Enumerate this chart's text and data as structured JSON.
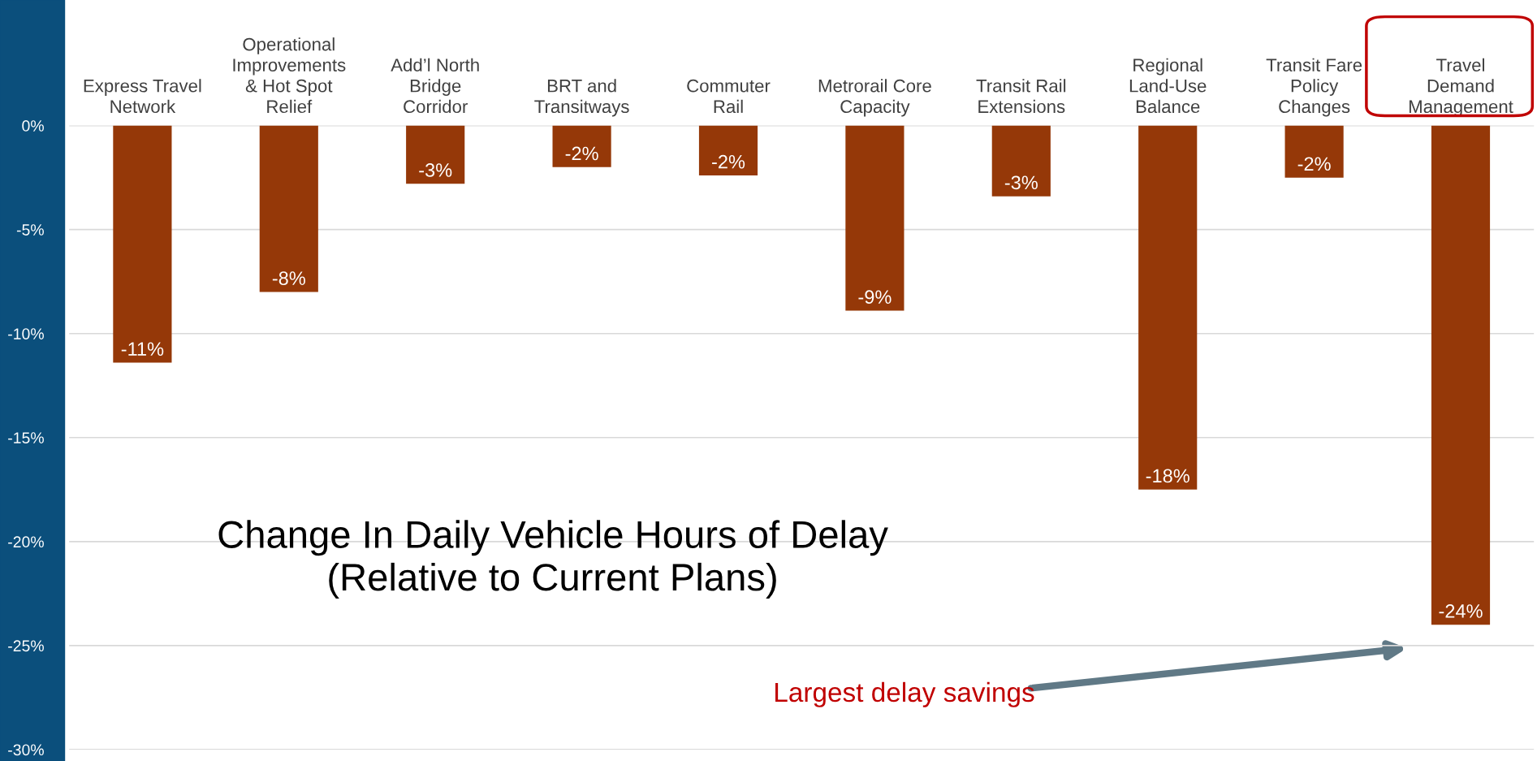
{
  "chart_data": {
    "type": "bar",
    "title": "Change In Daily Vehicle Hours of Delay\n(Relative to Current Plans)",
    "categories": [
      "Express Travel\nNetwork",
      "Operational\nImprovements\n& Hot Spot\nRelief",
      "Add’l North\nBridge\nCorridor",
      "BRT and\nTransitways",
      "Commuter\nRail",
      "Metrorail Core\nCapacity",
      "Transit Rail\nExtensions",
      "Regional\nLand-Use\nBalance",
      "Transit Fare\nPolicy\nChanges",
      "Travel\nDemand\nManagement"
    ],
    "values": [
      -11.4,
      -8.0,
      -2.8,
      -2.0,
      -2.4,
      -8.9,
      -3.4,
      -17.5,
      -2.5,
      -24.0
    ],
    "value_labels": [
      "-11%",
      "-8%",
      "-3%",
      "-2%",
      "-2%",
      "-9%",
      "-3%",
      "-18%",
      "-2%",
      "-24%"
    ],
    "color": "#953808",
    "ylim": [
      -30,
      0
    ],
    "yticks": [
      {
        "value": 0,
        "label": "0%"
      },
      {
        "value": -5,
        "label": "-5%"
      },
      {
        "value": -10,
        "label": "-10%"
      },
      {
        "value": -15,
        "label": "-15%"
      },
      {
        "value": -20,
        "label": "-20%"
      },
      {
        "value": -25,
        "label": "-25%"
      },
      {
        "value": -30,
        "label": "-30%"
      }
    ],
    "grid": "y",
    "legend": false,
    "annotations": [
      "Largest delay savings"
    ]
  }
}
